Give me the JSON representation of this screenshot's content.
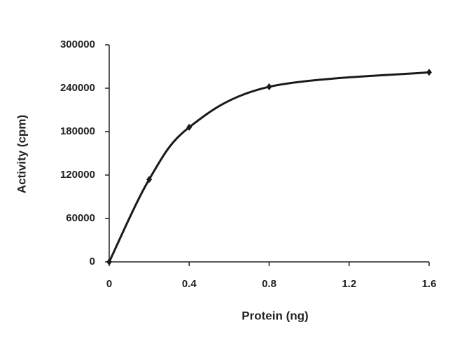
{
  "chart_data": {
    "type": "line",
    "x_label": "Protein (ng)",
    "y_label": "Activity (cpm)",
    "x": [
      0,
      0.2,
      0.4,
      0.8,
      1.6
    ],
    "series": [
      {
        "color": "#1a1a1a",
        "values": [
          0,
          114000,
          186000,
          242000,
          262000
        ]
      }
    ],
    "xlim": [
      0,
      1.6
    ],
    "xticks": [
      0,
      0.4,
      0.8,
      1.2,
      1.6
    ],
    "ylim": [
      0,
      300000
    ],
    "yticks": [
      0,
      60000,
      120000,
      180000,
      240000,
      300000
    ],
    "grid": false
  }
}
